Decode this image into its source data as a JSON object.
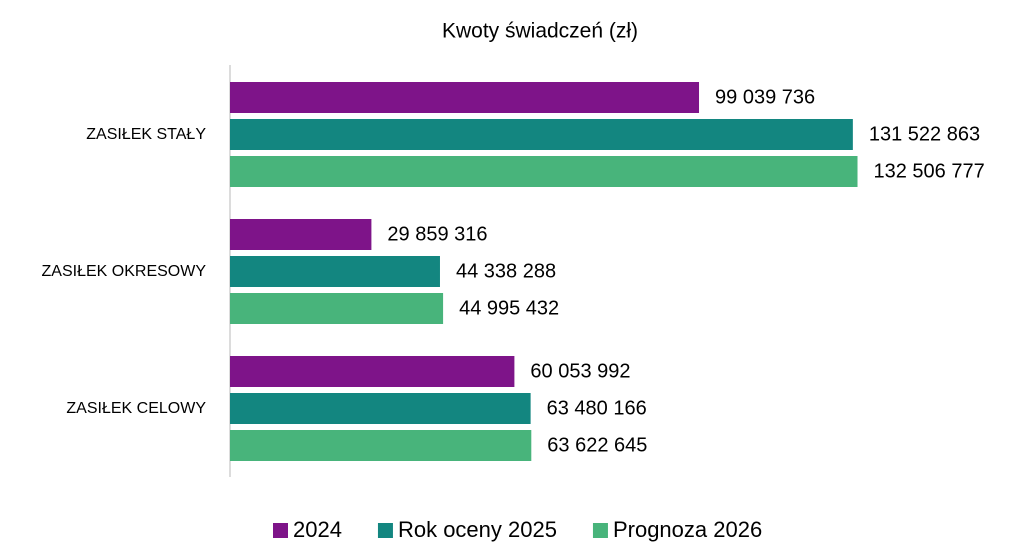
{
  "chart_data": {
    "type": "hbar",
    "title": "Kwoty świadczeń (zł)",
    "categories": [
      "ZASIŁEK STAŁY",
      "ZASIŁEK OKRESOWY",
      "ZASIŁEK CELOWY"
    ],
    "series": [
      {
        "name": "2024",
        "color": "#7e1489",
        "values": [
          99039736,
          29859316,
          60053992
        ],
        "value_labels": [
          "99 039 736",
          "29 859 316",
          "60 053 992"
        ]
      },
      {
        "name": "Rok oceny 2025",
        "color": "#138680",
        "values": [
          131522863,
          44338288,
          63480166
        ],
        "value_labels": [
          "131 522 863",
          "44 338 288",
          "63 480 166"
        ]
      },
      {
        "name": "Prognoza 2026",
        "color": "#48b47b",
        "values": [
          132506777,
          44995432,
          63622645
        ],
        "value_labels": [
          "132 506 777",
          "44 995 432",
          "63 622 645"
        ]
      }
    ],
    "xlim": [
      0,
      140000000
    ],
    "legend": "bottom"
  }
}
